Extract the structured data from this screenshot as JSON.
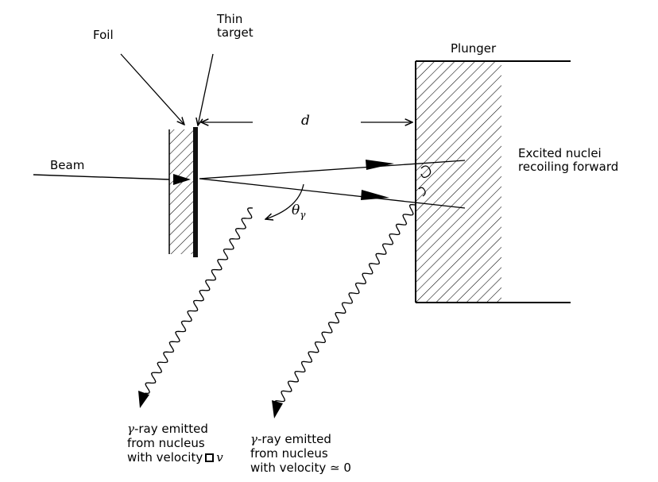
{
  "labels": {
    "foil": "Foil",
    "thin_target_line1": "Thin",
    "thin_target_line2": "target",
    "plunger": "Plunger",
    "distance": "d",
    "beam": "Beam",
    "excited_line1": "Excited nuclei",
    "excited_line2": "recoiling forward",
    "theta": "θ",
    "theta_sub": "γ",
    "gamma1_symbol": "γ",
    "gamma1_line1": "-ray emitted",
    "gamma1_line2": "from nucleus",
    "gamma1_line3a": "with velocity",
    "gamma1_line3b": "v",
    "gamma2_symbol": "γ",
    "gamma2_line1": "-ray emitted",
    "gamma2_line2": "from nucleus",
    "gamma2_line3": "with velocity ≃ 0"
  }
}
